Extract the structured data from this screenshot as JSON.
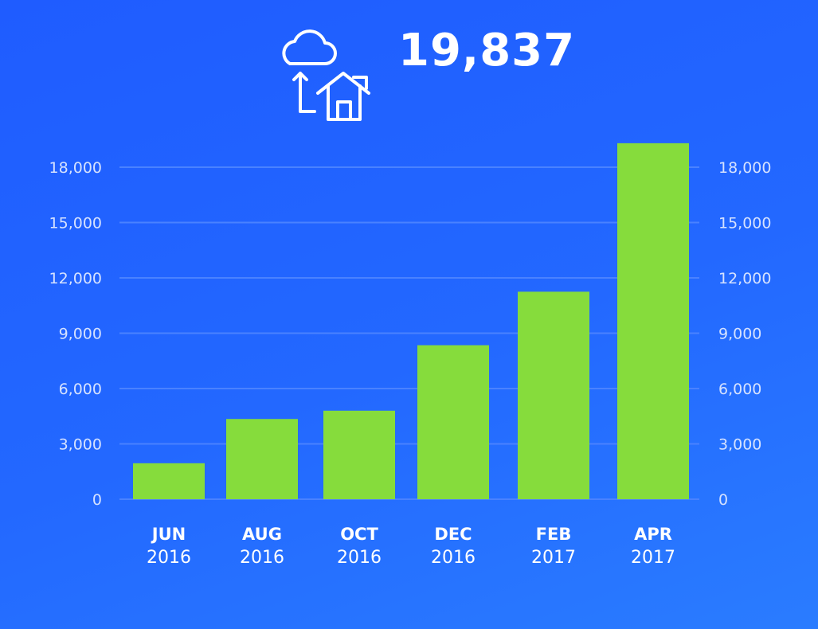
{
  "header": {
    "total": "19,837",
    "icon": "cloud-to-home-icon"
  },
  "colors": {
    "bar": "#86dc3c",
    "grid": "#4a82ff",
    "tick": "#d6e2ff"
  },
  "chart_data": {
    "type": "bar",
    "title": "",
    "xlabel": "",
    "ylabel": "",
    "categories": [
      "JUN",
      "AUG",
      "OCT",
      "DEC",
      "FEB",
      "APR"
    ],
    "category_years": [
      "2016",
      "2016",
      "2016",
      "2016",
      "2017",
      "2017"
    ],
    "values": [
      1950,
      4350,
      4800,
      8350,
      11250,
      19300
    ],
    "ylim": [
      0,
      18000
    ],
    "yticks": [
      0,
      3000,
      6000,
      9000,
      12000,
      15000,
      18000
    ],
    "ytick_labels": [
      "0",
      "3,000",
      "6,000",
      "9,000",
      "12,000",
      "15,000",
      "18,000"
    ],
    "grid": true,
    "y_axis_both_sides": true,
    "legend": "none"
  }
}
